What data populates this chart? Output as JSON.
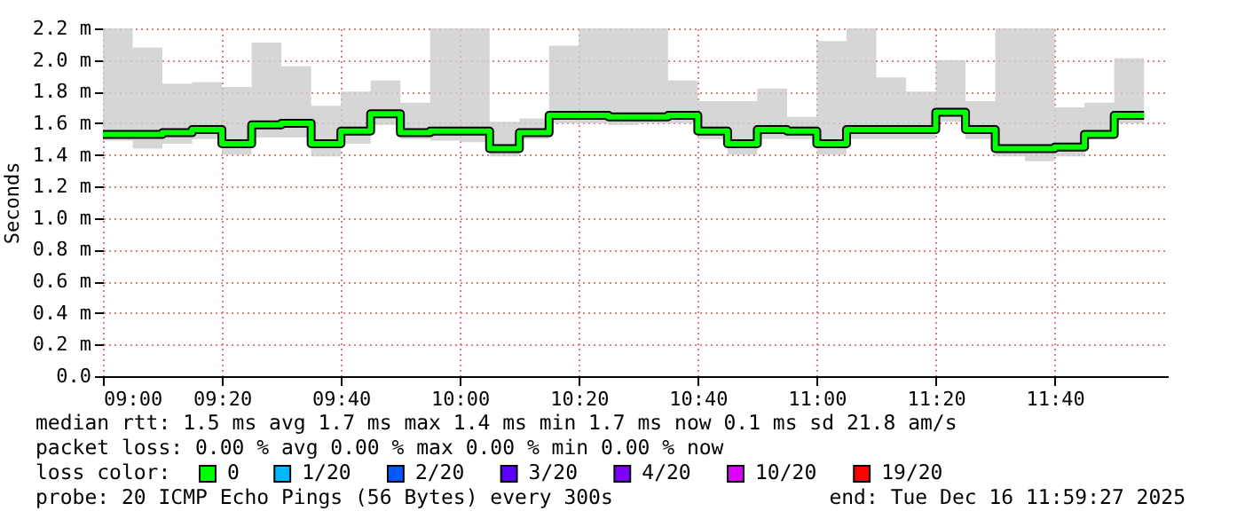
{
  "chart_data": {
    "type": "step",
    "ylabel": "Seconds",
    "x": [
      "2025-12-16T09:00",
      "2025-12-16T09:05",
      "2025-12-16T09:10",
      "2025-12-16T09:15",
      "2025-12-16T09:20",
      "2025-12-16T09:25",
      "2025-12-16T09:30",
      "2025-12-16T09:35",
      "2025-12-16T09:40",
      "2025-12-16T09:45",
      "2025-12-16T09:50",
      "2025-12-16T09:55",
      "2025-12-16T10:00",
      "2025-12-16T10:05",
      "2025-12-16T10:10",
      "2025-12-16T10:15",
      "2025-12-16T10:20",
      "2025-12-16T10:25",
      "2025-12-16T10:30",
      "2025-12-16T10:35",
      "2025-12-16T10:40",
      "2025-12-16T10:45",
      "2025-12-16T10:50",
      "2025-12-16T10:55",
      "2025-12-16T11:00",
      "2025-12-16T11:05",
      "2025-12-16T11:10",
      "2025-12-16T11:15",
      "2025-12-16T11:20",
      "2025-12-16T11:25",
      "2025-12-16T11:30",
      "2025-12-16T11:35",
      "2025-12-16T11:40",
      "2025-12-16T11:45",
      "2025-12-16T11:50",
      "2025-12-16T11:55"
    ],
    "series": [
      {
        "name": "0",
        "color": "#00ff00",
        "values": [
          1.53,
          1.53,
          1.54,
          1.56,
          1.47,
          1.59,
          1.6,
          1.47,
          1.55,
          1.66,
          1.54,
          1.55,
          1.55,
          1.44,
          1.54,
          1.65,
          1.65,
          1.64,
          1.64,
          1.65,
          1.55,
          1.47,
          1.56,
          1.55,
          1.47,
          1.56,
          1.56,
          1.56,
          1.67,
          1.56,
          1.44,
          1.44,
          1.45,
          1.53,
          1.65,
          1.65
        ],
        "lower": [
          1.49,
          1.44,
          1.47,
          1.5,
          1.4,
          1.51,
          1.51,
          1.39,
          1.47,
          1.59,
          1.5,
          1.49,
          1.48,
          1.39,
          1.5,
          1.6,
          1.6,
          1.59,
          1.6,
          1.6,
          1.5,
          1.4,
          1.5,
          1.5,
          1.4,
          1.5,
          1.5,
          1.5,
          1.61,
          1.5,
          1.39,
          1.36,
          1.39,
          1.5,
          1.6,
          1.6
        ],
        "upper": [
          2.2,
          2.08,
          1.85,
          1.86,
          1.83,
          2.11,
          1.96,
          1.71,
          1.8,
          1.87,
          1.73,
          2.2,
          2.2,
          1.61,
          1.63,
          2.09,
          2.2,
          2.2,
          2.2,
          1.87,
          1.74,
          1.74,
          1.82,
          1.64,
          2.12,
          2.2,
          1.89,
          1.8,
          2.0,
          1.74,
          2.2,
          2.2,
          1.7,
          1.73,
          2.01,
          2.01
        ]
      },
      {
        "name": "1/20",
        "color": "#00b8ff",
        "values": [
          null,
          null,
          null,
          null,
          null,
          null,
          null,
          null,
          null,
          null,
          null,
          null,
          null,
          null,
          null,
          null,
          null,
          null,
          null,
          null,
          null,
          null,
          null,
          null,
          null,
          null,
          null,
          null,
          null,
          null,
          null,
          null,
          null,
          null,
          null,
          null
        ]
      },
      {
        "name": "2/20",
        "color": "#0059ff",
        "values": [
          null,
          null,
          null,
          null,
          null,
          null,
          null,
          null,
          null,
          null,
          null,
          null,
          null,
          null,
          null,
          null,
          null,
          null,
          null,
          null,
          null,
          null,
          null,
          null,
          null,
          null,
          null,
          null,
          null,
          null,
          null,
          null,
          null,
          null,
          null,
          null
        ]
      },
      {
        "name": "3/20",
        "color": "#5e00ff",
        "values": [
          null,
          null,
          null,
          null,
          null,
          null,
          null,
          null,
          null,
          null,
          null,
          null,
          null,
          null,
          null,
          null,
          null,
          null,
          null,
          null,
          null,
          null,
          null,
          null,
          null,
          null,
          null,
          null,
          null,
          null,
          null,
          null,
          null,
          null,
          null,
          null
        ]
      },
      {
        "name": "4/20",
        "color": "#7e00ff",
        "values": [
          null,
          null,
          null,
          null,
          null,
          null,
          null,
          null,
          null,
          null,
          null,
          null,
          null,
          null,
          null,
          null,
          null,
          null,
          null,
          null,
          null,
          null,
          null,
          null,
          null,
          null,
          null,
          null,
          null,
          null,
          null,
          null,
          null,
          null,
          null,
          null
        ]
      },
      {
        "name": "10/20",
        "color": "#dd00ff",
        "values": [
          null,
          null,
          null,
          null,
          null,
          null,
          null,
          null,
          null,
          null,
          null,
          null,
          null,
          null,
          null,
          null,
          null,
          null,
          null,
          null,
          null,
          null,
          null,
          null,
          null,
          null,
          null,
          null,
          null,
          null,
          null,
          null,
          null,
          null,
          null,
          null
        ]
      },
      {
        "name": "19/20",
        "color": "#ff0000",
        "values": [
          null,
          null,
          null,
          null,
          null,
          null,
          null,
          null,
          null,
          null,
          null,
          null,
          null,
          null,
          null,
          null,
          null,
          null,
          null,
          null,
          null,
          null,
          null,
          null,
          null,
          null,
          null,
          null,
          null,
          null,
          null,
          null,
          null,
          null,
          null,
          null
        ]
      }
    ],
    "legend_title": "loss color:",
    "legend": "bottom",
    "xlim": [
      "2025-12-16T09:00",
      "2025-12-16T11:59"
    ],
    "xticks": [
      {
        "value": "2025-12-16T09:00",
        "label": "09:00"
      },
      {
        "value": "2025-12-16T09:20",
        "label": "09:20"
      },
      {
        "value": "2025-12-16T09:40",
        "label": "09:40"
      },
      {
        "value": "2025-12-16T10:00",
        "label": "10:00"
      },
      {
        "value": "2025-12-16T10:20",
        "label": "10:20"
      },
      {
        "value": "2025-12-16T10:40",
        "label": "10:40"
      },
      {
        "value": "2025-12-16T11:00",
        "label": "11:00"
      },
      {
        "value": "2025-12-16T11:20",
        "label": "11:20"
      },
      {
        "value": "2025-12-16T11:40",
        "label": "11:40"
      }
    ],
    "ylim": [
      0,
      2.2
    ],
    "yticks": [
      {
        "value": 0,
        "label": "0.0"
      },
      {
        "value": 0.2,
        "label": "0.2 m"
      },
      {
        "value": 0.4,
        "label": "0.4 m"
      },
      {
        "value": 0.6,
        "label": "0.6 m"
      },
      {
        "value": 0.8,
        "label": "0.8 m"
      },
      {
        "value": 1.0,
        "label": "1.0 m"
      },
      {
        "value": 1.2,
        "label": "1.2 m"
      },
      {
        "value": 1.4,
        "label": "1.4 m"
      },
      {
        "value": 1.6,
        "label": "1.6 m"
      },
      {
        "value": 1.8,
        "label": "1.8 m"
      },
      {
        "value": 2.0,
        "label": "2.0 m"
      },
      {
        "value": 2.2,
        "label": "2.2 m"
      }
    ],
    "grid": true,
    "annotations": [
      "median rtt:  1.5 ms avg  1.7 ms max  1.4 ms min  1.7 ms now  0.1 ms sd  21.8   am/s",
      "packet loss: 0.00 % avg  0.00 % max  0.00 % min  0.00 % now",
      "probe:       20 ICMP Echo Pings (56 Bytes) every 300s",
      "end: Tue Dec 16 11:59:27 2025"
    ]
  }
}
